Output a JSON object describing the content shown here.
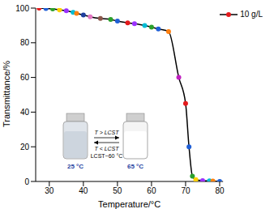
{
  "chart_data": {
    "type": "line",
    "x_label": "Temperature/°C",
    "y_label": "Transmittance/%",
    "x": [
      27,
      29,
      31,
      33,
      35,
      37,
      38,
      40,
      42,
      45,
      48,
      50,
      53,
      55,
      58,
      60,
      62,
      65,
      68,
      70,
      71,
      72,
      73,
      75,
      77,
      78,
      80
    ],
    "series": [
      {
        "name": "10 g/L",
        "color": "#000000",
        "marker": "circle",
        "line_style": "solid",
        "values": [
          100,
          99.8,
          99.5,
          99,
          98.5,
          97.5,
          97,
          96,
          95,
          94,
          93.5,
          92.5,
          91.5,
          91,
          90,
          89,
          88,
          86.5,
          60,
          45,
          20,
          3,
          1,
          0.5,
          0.3,
          0.2,
          0
        ],
        "colors": [
          "#e41a1c",
          "#1f5fd6",
          "#2ca02c",
          "#ffd000",
          "#9b30ff",
          "#00bcd4",
          "#ff7f0e",
          "#1f3f9f",
          "#e377c2",
          "#8c564b",
          "#2ca02c",
          "#1f5fd6",
          "#e41a1c",
          "#9b30ff",
          "#00bcd4",
          "#2ca02c",
          "#1f5fd6",
          "#ff7f0e",
          "#c020c0",
          "#e41a1c",
          "#1f5fd6",
          "#2ca02c",
          "#ffd000",
          "#9b30ff",
          "#00bcd4",
          "#ff7f0e",
          "#1f5fd6"
        ]
      }
    ],
    "xlim": [
      26,
      81
    ],
    "xticks": [
      30,
      40,
      50,
      60,
      70,
      80
    ],
    "ylim": [
      0,
      100
    ],
    "yticks": [
      0,
      20,
      40,
      60,
      80,
      100
    ],
    "legend": "upper right",
    "annotations": [
      "25 °C",
      "T > LCST",
      "T < LCST",
      "LCST~60 °C",
      "65 °C"
    ]
  }
}
